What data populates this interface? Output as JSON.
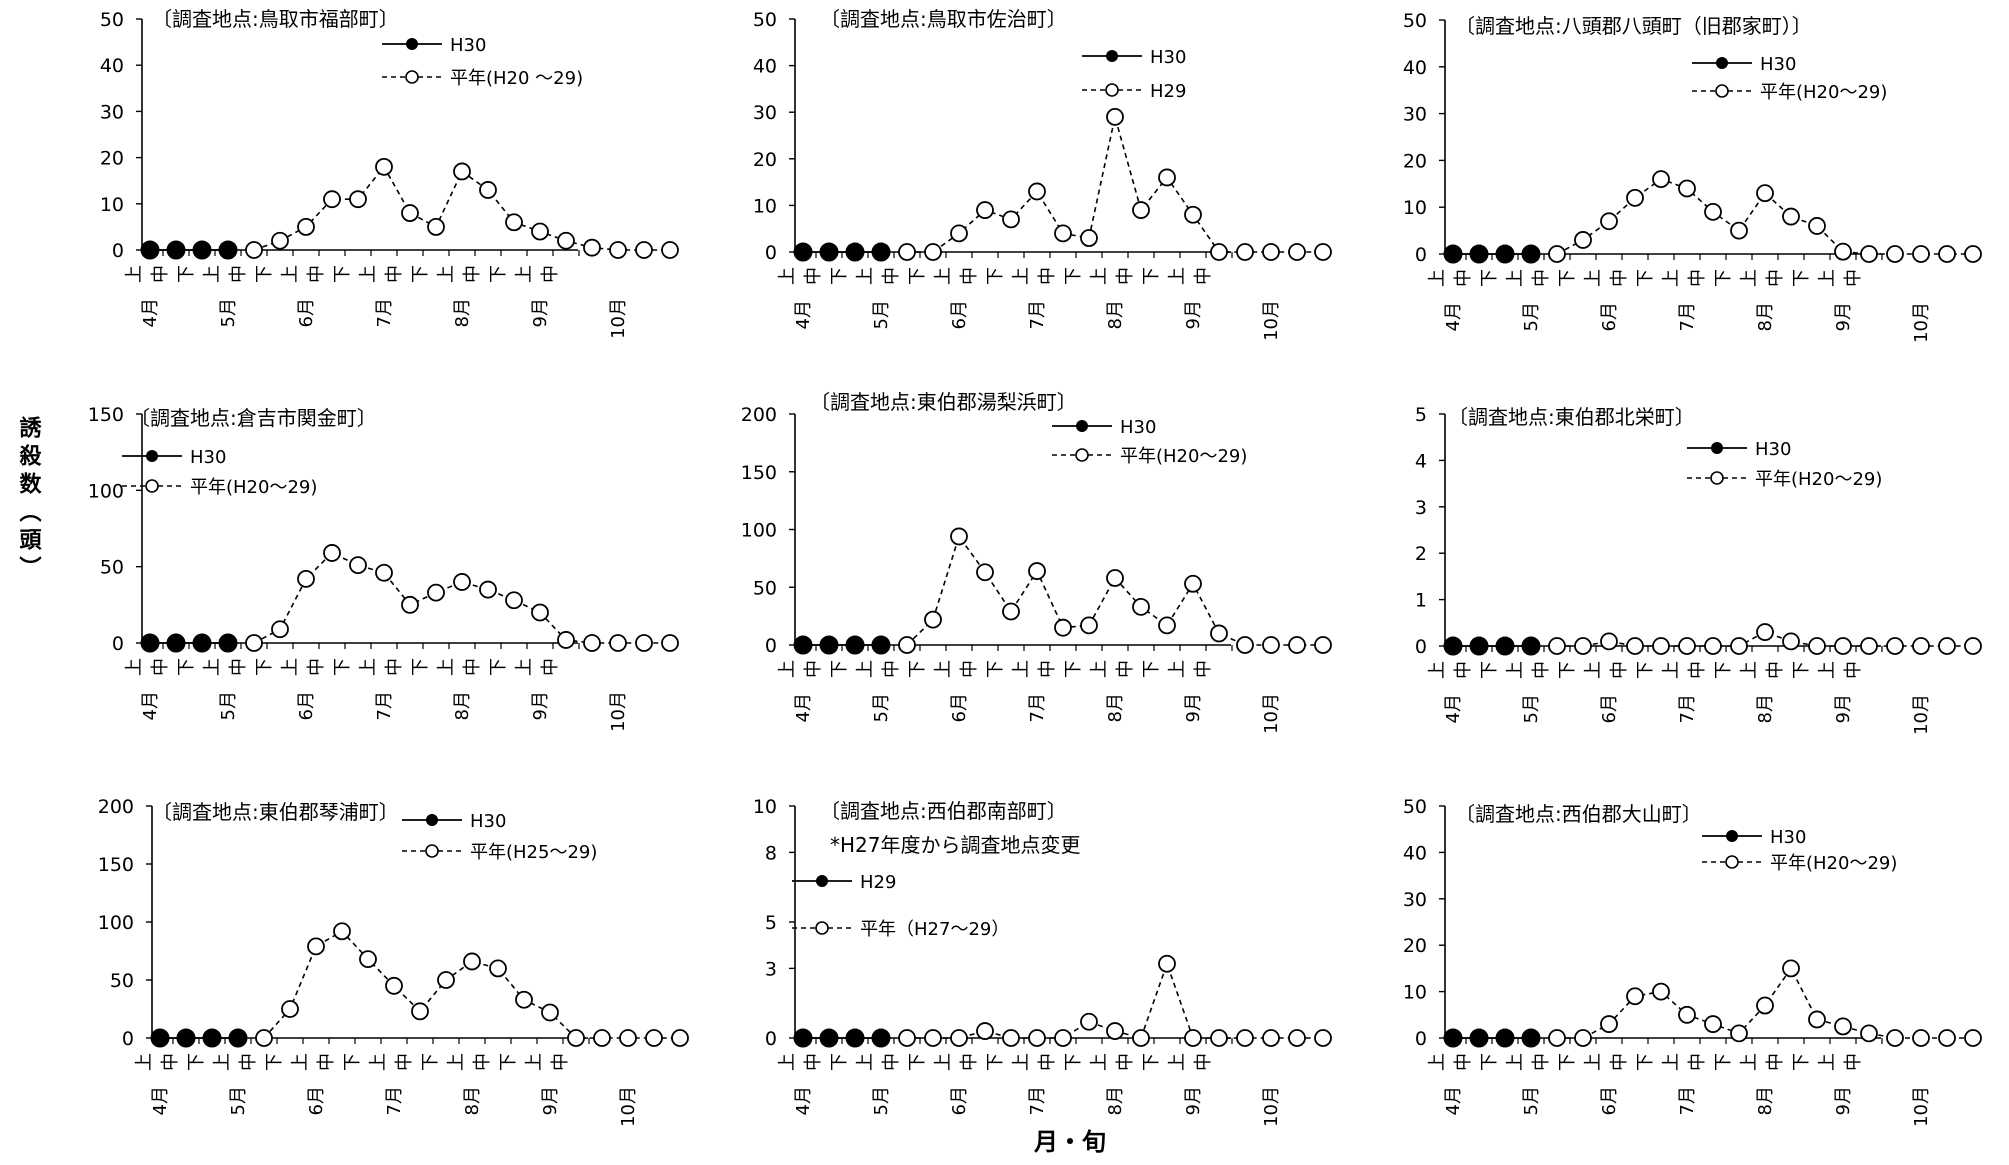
{
  "figure": {
    "ylabel": "誘殺数（頭）",
    "xlabel": "月・旬"
  },
  "periods": [
    "上",
    "中",
    "下"
  ],
  "months": [
    "4月",
    "5月",
    "6月",
    "7月",
    "8月",
    "9月",
    "10月"
  ],
  "chart_data": [
    {
      "type": "line",
      "title": "〔調査地点:鳥取市福部町〕",
      "ylim": [
        0,
        50
      ],
      "yticks": [
        0,
        10,
        20,
        30,
        40,
        50
      ],
      "series": [
        {
          "name": "H30",
          "style": "solid-filled",
          "values": [
            0,
            0,
            0,
            0
          ]
        },
        {
          "name": "平年(H20 ～29)",
          "style": "dashed-open",
          "values": [
            0,
            2,
            5,
            11,
            11,
            18,
            8,
            5,
            17,
            13,
            6,
            4,
            2,
            0.5,
            0,
            0,
            0
          ]
        }
      ]
    },
    {
      "type": "line",
      "title": "〔調査地点:鳥取市佐治町〕",
      "ylim": [
        0,
        50
      ],
      "yticks": [
        0,
        10,
        20,
        30,
        40,
        50
      ],
      "series": [
        {
          "name": "H30",
          "style": "solid-filled",
          "values": [
            0,
            0,
            0,
            0
          ]
        },
        {
          "name": "H29",
          "style": "dashed-open",
          "values": [
            0,
            0,
            4,
            9,
            7,
            13,
            4,
            3,
            29,
            9,
            16,
            8,
            0,
            0,
            0,
            0,
            0
          ]
        }
      ]
    },
    {
      "type": "line",
      "title": "〔調査地点:八頭郡八頭町（旧郡家町）〕",
      "ylim": [
        0,
        50
      ],
      "yticks": [
        0,
        10,
        20,
        30,
        40,
        50
      ],
      "series": [
        {
          "name": "H30",
          "style": "solid-filled",
          "values": [
            0,
            0,
            0,
            0
          ]
        },
        {
          "name": "平年(H20～29)",
          "style": "dashed-open",
          "values": [
            0,
            3,
            7,
            12,
            16,
            14,
            9,
            5,
            13,
            8,
            6,
            0.5,
            0,
            0,
            0,
            0,
            0
          ]
        }
      ]
    },
    {
      "type": "line",
      "title": "〔調査地点:倉吉市関金町〕",
      "ylim": [
        0,
        150
      ],
      "yticks": [
        0,
        50,
        100,
        150
      ],
      "series": [
        {
          "name": "H30",
          "style": "solid-filled",
          "values": [
            0,
            0,
            0,
            0
          ]
        },
        {
          "name": "平年(H20～29)",
          "style": "dashed-open",
          "values": [
            0,
            9,
            42,
            59,
            51,
            46,
            25,
            33,
            40,
            35,
            28,
            20,
            2,
            0,
            0,
            0,
            0
          ]
        }
      ]
    },
    {
      "type": "line",
      "title": "〔調査地点:東伯郡湯梨浜町〕",
      "ylim": [
        0,
        200
      ],
      "yticks": [
        0,
        50,
        100,
        150,
        200
      ],
      "series": [
        {
          "name": "H30",
          "style": "solid-filled",
          "values": [
            0,
            0,
            0,
            0
          ]
        },
        {
          "name": "平年(H20～29)",
          "style": "dashed-open",
          "values": [
            0,
            22,
            94,
            63,
            29,
            64,
            15,
            17,
            58,
            33,
            17,
            53,
            10,
            0,
            0,
            0,
            0
          ]
        }
      ]
    },
    {
      "type": "line",
      "title": "〔調査地点:東伯郡北栄町〕",
      "ylim": [
        0,
        5
      ],
      "yticks": [
        0,
        1,
        2,
        3,
        4,
        5
      ],
      "series": [
        {
          "name": "H30",
          "style": "solid-filled",
          "values": [
            0,
            0,
            0,
            0
          ]
        },
        {
          "name": "平年(H20～29)",
          "style": "dashed-open",
          "values": [
            0,
            0,
            0.1,
            0,
            0,
            0,
            0,
            0,
            0.3,
            0.1,
            0,
            0,
            0,
            0,
            0,
            0,
            0
          ]
        }
      ]
    },
    {
      "type": "line",
      "title": "〔調査地点:東伯郡琴浦町〕",
      "ylim": [
        0,
        200
      ],
      "yticks": [
        0,
        50,
        100,
        150,
        200
      ],
      "series": [
        {
          "name": "H30",
          "style": "solid-filled",
          "values": [
            0,
            0,
            0,
            0
          ]
        },
        {
          "name": "平年(H25～29)",
          "style": "dashed-open",
          "values": [
            0,
            25,
            79,
            92,
            68,
            45,
            23,
            50,
            66,
            60,
            33,
            22,
            0,
            0,
            0,
            0,
            0
          ]
        }
      ]
    },
    {
      "type": "line",
      "title": "〔調査地点:西伯郡南部町〕",
      "note": "*H27年度から調査地点変更",
      "ylim": [
        0,
        10
      ],
      "yticks": [
        0,
        3,
        5,
        8,
        10
      ],
      "series": [
        {
          "name": "H29",
          "style": "solid-filled",
          "values": [
            0,
            0,
            0,
            0
          ]
        },
        {
          "name": "平年（H27～29）",
          "style": "dashed-open",
          "values": [
            0,
            0,
            0,
            0.3,
            0,
            0,
            0,
            0.7,
            0.3,
            0,
            3.2,
            0,
            0,
            0,
            0,
            0,
            0
          ]
        }
      ]
    },
    {
      "type": "line",
      "title": "〔調査地点:西伯郡大山町〕",
      "ylim": [
        0,
        50
      ],
      "yticks": [
        0,
        10,
        20,
        30,
        40,
        50
      ],
      "series": [
        {
          "name": "H30",
          "style": "solid-filled",
          "values": [
            0,
            0,
            0,
            0
          ]
        },
        {
          "name": "平年(H20～29)",
          "style": "dashed-open",
          "values": [
            0,
            0,
            3,
            9,
            10,
            5,
            3,
            1,
            7,
            15,
            4,
            2.5,
            1,
            0,
            0,
            0,
            0
          ]
        }
      ]
    }
  ]
}
